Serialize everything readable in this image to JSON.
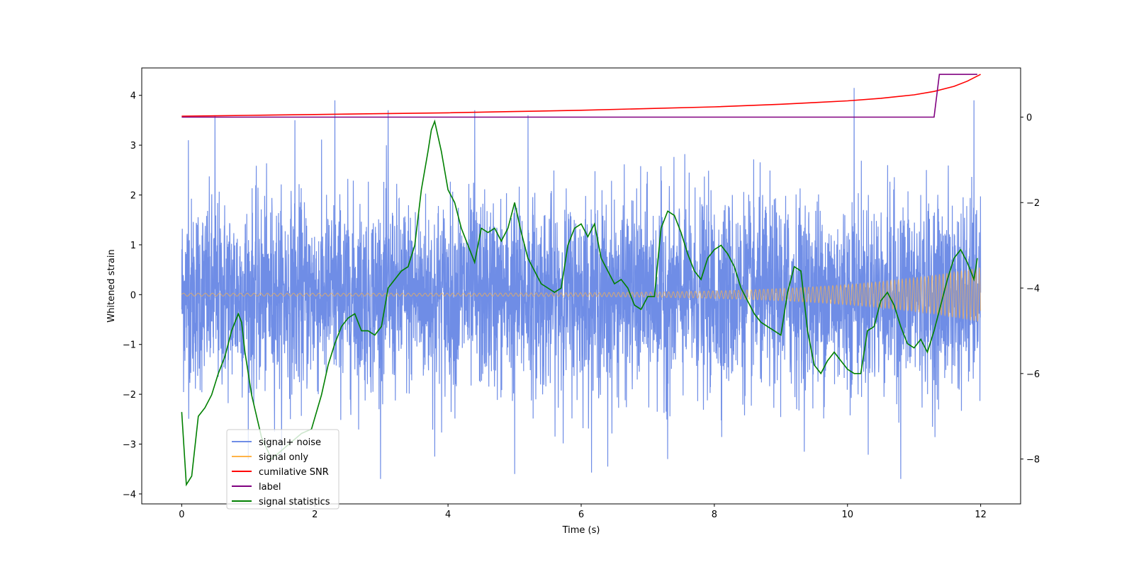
{
  "chart_data": {
    "type": "line",
    "title": "",
    "xlabel": "Time (s)",
    "ylabel": "Whitened strain",
    "xlim": [
      -0.6,
      12.6
    ],
    "ylim": [
      -4.2,
      4.55
    ],
    "y2lim": [
      -9.05,
      1.15
    ],
    "xticks": [
      0,
      2,
      4,
      6,
      8,
      10,
      12
    ],
    "yticks": [
      4,
      3,
      2,
      1,
      0,
      -1,
      -2,
      -3,
      -4
    ],
    "y2ticks": [
      0,
      -2,
      -4,
      -6,
      -8
    ],
    "xtick_labels": [
      "0",
      "2",
      "4",
      "6",
      "8",
      "10",
      "12"
    ],
    "ytick_labels": [
      "4",
      "3",
      "2",
      "1",
      "0",
      "−1",
      "−2",
      "−3",
      "−4"
    ],
    "y2tick_labels": [
      "0",
      "−2",
      "−4",
      "−6",
      "−8"
    ],
    "legend_position": "lower-left",
    "colors": {
      "signal_noise": "#6f8de6",
      "signal_only": "#ffb347",
      "cumulative_snr": "#ff0000",
      "label": "#800080",
      "signal_statistics": "#008000"
    },
    "series": [
      {
        "name": "signal+ noise",
        "key": "signal_noise",
        "axis": "left",
        "description": "random noise, t from 0 to 12, amplitude roughly ±2.5 with spikes up to 4.2 and down to -3.8",
        "peaks": [
          {
            "x": 0.1,
            "y": 3.1
          },
          {
            "x": 0.5,
            "y": 3.6
          },
          {
            "x": 1.7,
            "y": 3.5
          },
          {
            "x": 2.3,
            "y": 3.9
          },
          {
            "x": 3.1,
            "y": 3.7
          },
          {
            "x": 4.4,
            "y": 3.7
          },
          {
            "x": 5.2,
            "y": 3.6
          },
          {
            "x": 10.1,
            "y": 4.2
          },
          {
            "x": 11.9,
            "y": 3.9
          },
          {
            "x": 5.0,
            "y": -3.6
          },
          {
            "x": 6.4,
            "y": -3.45
          },
          {
            "x": 10.8,
            "y": -3.8
          },
          {
            "x": 3.8,
            "y": -3.25
          },
          {
            "x": 7.3,
            "y": -3.3
          }
        ]
      },
      {
        "name": "signal only",
        "key": "signal_only",
        "axis": "left",
        "description": "chirp oscillation with amplitude growing from ~0.03 to ~0.55 at t=12"
      },
      {
        "name": "cumilative SNR",
        "key": "cumulative_snr",
        "axis": "right",
        "x": [
          0,
          1,
          2,
          3,
          4,
          5,
          6,
          7,
          8,
          9,
          9.5,
          10,
          10.5,
          11,
          11.3,
          11.6,
          11.8,
          12
        ],
        "values": [
          0.02,
          0.04,
          0.06,
          0.08,
          0.1,
          0.13,
          0.16,
          0.2,
          0.24,
          0.3,
          0.34,
          0.38,
          0.44,
          0.52,
          0.6,
          0.72,
          0.84,
          1.0
        ]
      },
      {
        "name": "label",
        "key": "label",
        "axis": "right",
        "x": [
          0,
          11.3,
          11.38,
          11.95
        ],
        "values": [
          0,
          0,
          1,
          1
        ]
      },
      {
        "name": "signal statistics",
        "key": "signal_statistics",
        "axis": "right",
        "x": [
          0,
          0.07,
          0.15,
          0.25,
          0.35,
          0.45,
          0.55,
          0.65,
          0.75,
          0.85,
          0.9,
          0.95,
          1.05,
          1.2,
          1.35,
          1.5,
          1.65,
          1.8,
          1.95,
          2.1,
          2.2,
          2.3,
          2.4,
          2.5,
          2.6,
          2.7,
          2.8,
          2.9,
          3.0,
          3.1,
          3.2,
          3.3,
          3.4,
          3.5,
          3.6,
          3.7,
          3.75,
          3.8,
          3.9,
          4.0,
          4.1,
          4.2,
          4.3,
          4.4,
          4.5,
          4.6,
          4.7,
          4.8,
          4.9,
          5.0,
          5.1,
          5.2,
          5.3,
          5.4,
          5.5,
          5.6,
          5.7,
          5.8,
          5.9,
          6.0,
          6.1,
          6.2,
          6.3,
          6.4,
          6.5,
          6.6,
          6.7,
          6.8,
          6.9,
          7.0,
          7.1,
          7.2,
          7.3,
          7.4,
          7.5,
          7.6,
          7.7,
          7.8,
          7.9,
          8.0,
          8.1,
          8.2,
          8.3,
          8.4,
          8.5,
          8.6,
          8.7,
          8.8,
          8.9,
          9.0,
          9.1,
          9.2,
          9.3,
          9.4,
          9.5,
          9.6,
          9.7,
          9.8,
          9.9,
          10.0,
          10.1,
          10.2,
          10.3,
          10.4,
          10.5,
          10.6,
          10.7,
          10.8,
          10.9,
          11.0,
          11.1,
          11.2,
          11.3,
          11.4,
          11.5,
          11.6,
          11.7,
          11.8,
          11.9,
          11.95
        ],
        "values": [
          -6.9,
          -8.6,
          -8.4,
          -7.0,
          -6.8,
          -6.5,
          -6.0,
          -5.6,
          -5.0,
          -4.6,
          -4.8,
          -5.5,
          -6.5,
          -7.5,
          -8.0,
          -7.8,
          -7.6,
          -7.4,
          -7.3,
          -6.5,
          -5.8,
          -5.3,
          -4.9,
          -4.7,
          -4.6,
          -5.0,
          -5.0,
          -5.1,
          -4.9,
          -4.0,
          -3.8,
          -3.6,
          -3.5,
          -3.0,
          -1.7,
          -0.8,
          -0.3,
          -0.1,
          -0.8,
          -1.7,
          -2.0,
          -2.6,
          -3.0,
          -3.4,
          -2.6,
          -2.7,
          -2.6,
          -2.9,
          -2.6,
          -2.0,
          -2.7,
          -3.3,
          -3.6,
          -3.9,
          -4.0,
          -4.1,
          -4.0,
          -3.0,
          -2.6,
          -2.5,
          -2.8,
          -2.5,
          -3.3,
          -3.6,
          -3.9,
          -3.8,
          -4.0,
          -4.4,
          -4.5,
          -4.2,
          -4.2,
          -2.6,
          -2.2,
          -2.3,
          -2.7,
          -3.2,
          -3.6,
          -3.8,
          -3.3,
          -3.1,
          -3.0,
          -3.2,
          -3.5,
          -4.0,
          -4.3,
          -4.6,
          -4.8,
          -4.9,
          -5.0,
          -5.1,
          -4.1,
          -3.5,
          -3.6,
          -5.0,
          -5.8,
          -6.0,
          -5.7,
          -5.5,
          -5.7,
          -5.9,
          -6.0,
          -6.0,
          -5.0,
          -4.9,
          -4.3,
          -4.1,
          -4.4,
          -4.9,
          -5.3,
          -5.4,
          -5.2,
          -5.5,
          -5.0,
          -4.4,
          -3.8,
          -3.3,
          -3.1,
          -3.4,
          -3.8,
          -3.3
        ]
      }
    ]
  }
}
